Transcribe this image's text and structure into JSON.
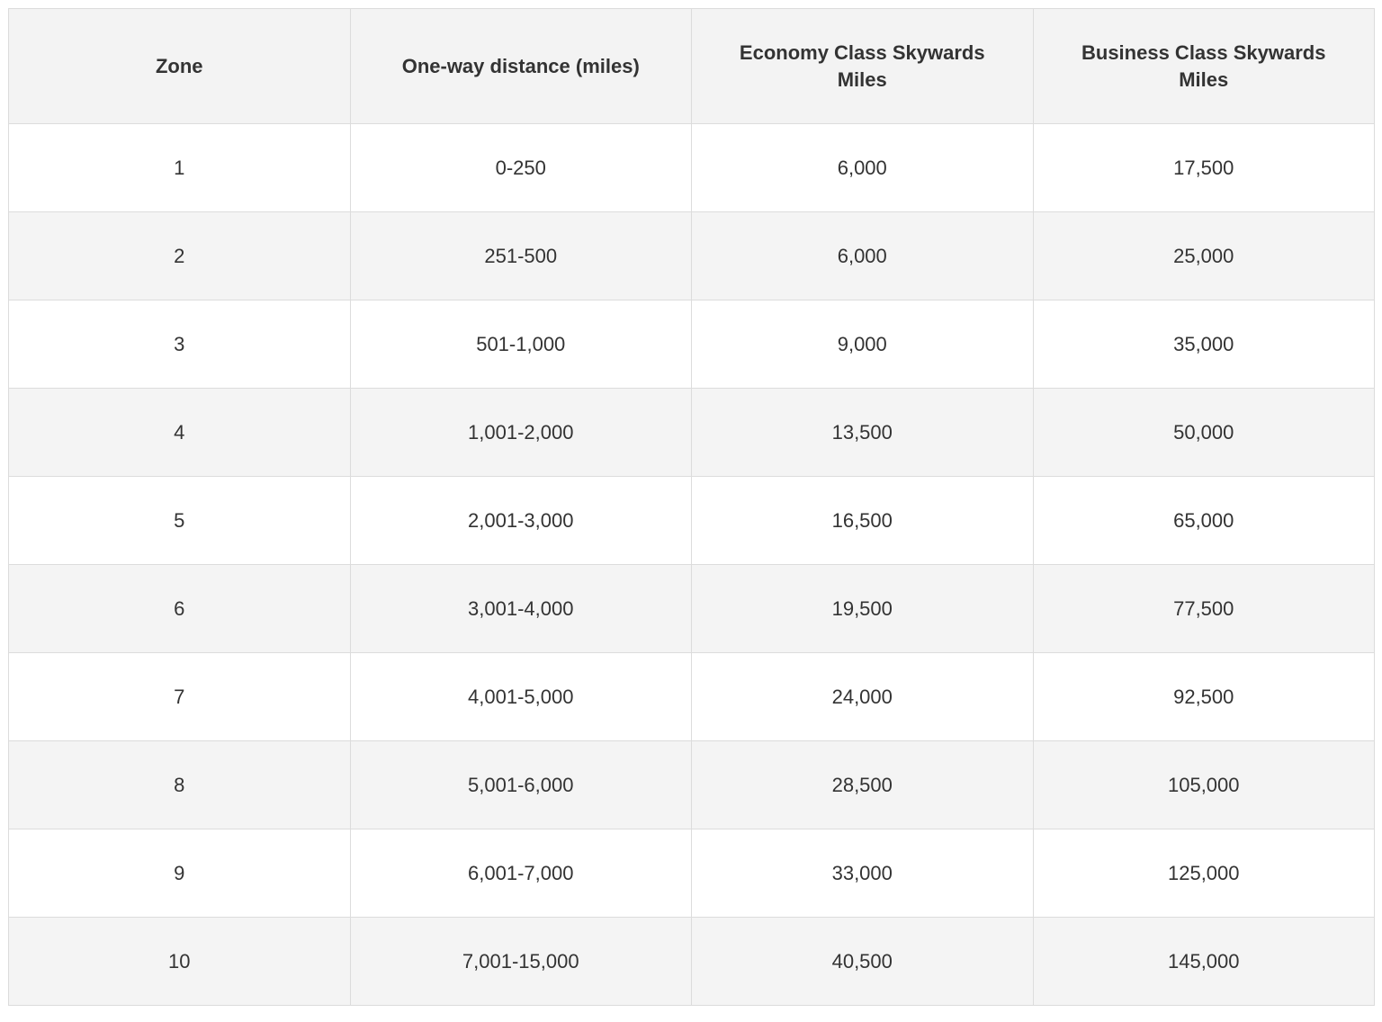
{
  "table": {
    "header": [
      "Zone",
      "One-way distance (miles)",
      "Economy Class Skywards Miles",
      "Business Class Skywards Miles"
    ],
    "rows": [
      [
        "1",
        "0-250",
        "6,000",
        "17,500"
      ],
      [
        "2",
        "251-500",
        "6,000",
        "25,000"
      ],
      [
        "3",
        "501-1,000",
        "9,000",
        "35,000"
      ],
      [
        "4",
        "1,001-2,000",
        "13,500",
        "50,000"
      ],
      [
        "5",
        "2,001-3,000",
        "16,500",
        "65,000"
      ],
      [
        "6",
        "3,001-4,000",
        "19,500",
        "77,500"
      ],
      [
        "7",
        "4,001-5,000",
        "24,000",
        "92,500"
      ],
      [
        "8",
        "5,001-6,000",
        "28,500",
        "105,000"
      ],
      [
        "9",
        "6,001-7,000",
        "33,000",
        "125,000"
      ],
      [
        "10",
        "7,001-15,000",
        "40,500",
        "145,000"
      ]
    ]
  }
}
